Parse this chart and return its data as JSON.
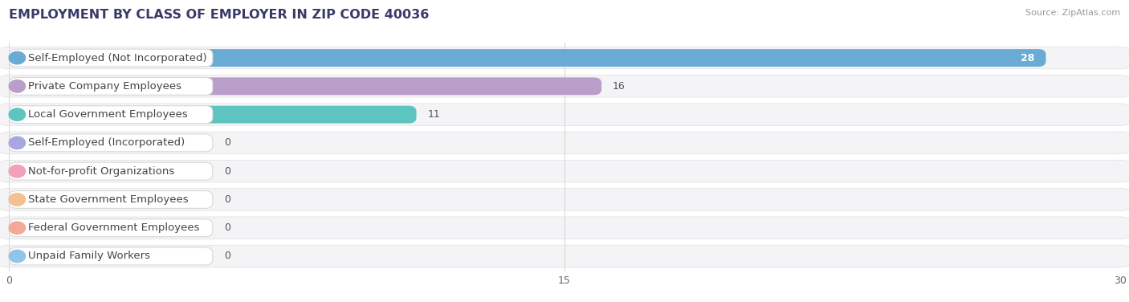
{
  "title": "EMPLOYMENT BY CLASS OF EMPLOYER IN ZIP CODE 40036",
  "source": "Source: ZipAtlas.com",
  "categories": [
    "Self-Employed (Not Incorporated)",
    "Private Company Employees",
    "Local Government Employees",
    "Self-Employed (Incorporated)",
    "Not-for-profit Organizations",
    "State Government Employees",
    "Federal Government Employees",
    "Unpaid Family Workers"
  ],
  "values": [
    28,
    16,
    11,
    0,
    0,
    0,
    0,
    0
  ],
  "bar_colors": [
    "#6aabd6",
    "#b89ec8",
    "#5ec4c0",
    "#a8a8e0",
    "#f4a0b8",
    "#f4c090",
    "#f4a898",
    "#92c4e8"
  ],
  "label_bg_colors": [
    "#dceeff",
    "#ede0f4",
    "#d0f0f0",
    "#dcdcf4",
    "#fce0e8",
    "#fce8d0",
    "#fce0dc",
    "#dceeff"
  ],
  "xlim": [
    0,
    30
  ],
  "xticks": [
    0,
    15,
    30
  ],
  "background_color": "#ffffff",
  "row_bg_color": "#efefef",
  "bar_background_color": "#f0f0f0",
  "title_fontsize": 11.5,
  "label_fontsize": 9.5,
  "value_fontsize": 9,
  "grid_color": "#d8d8d8",
  "title_color": "#3a3a6a",
  "source_color": "#999999"
}
